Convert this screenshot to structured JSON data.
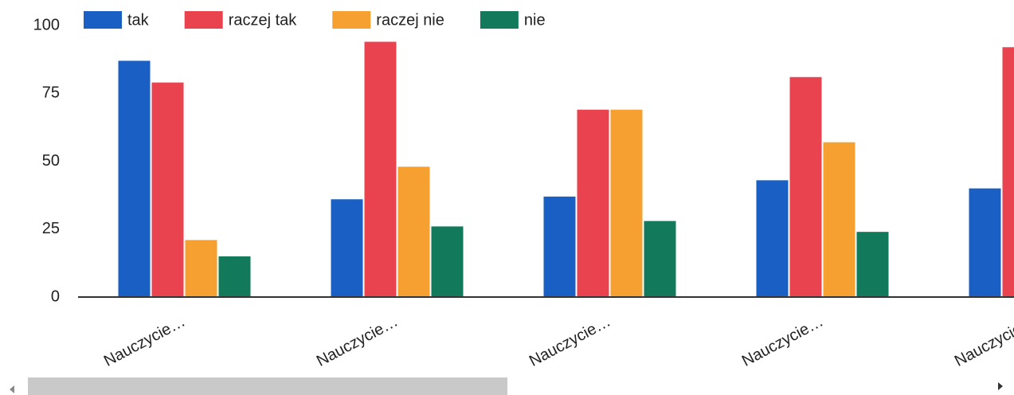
{
  "chart_data": {
    "type": "bar",
    "categories": [
      "Nauczycie…",
      "Nauczycie…",
      "Nauczycie…",
      "Nauczycie…",
      "Nauczycie…"
    ],
    "series": [
      {
        "name": "tak",
        "color": "#1a5fc4",
        "values": [
          87,
          36,
          37,
          43,
          40
        ]
      },
      {
        "name": "raczej tak",
        "color": "#e8434f",
        "values": [
          79,
          94,
          69,
          81,
          92
        ]
      },
      {
        "name": "raczej nie",
        "color": "#f5a030",
        "values": [
          21,
          48,
          69,
          57,
          null
        ]
      },
      {
        "name": "nie",
        "color": "#127a5a",
        "values": [
          15,
          26,
          28,
          24,
          null
        ]
      }
    ],
    "ylim": [
      0,
      100
    ],
    "yticks": [
      0,
      25,
      50,
      75,
      100
    ],
    "grid": false,
    "legend": "top"
  }
}
